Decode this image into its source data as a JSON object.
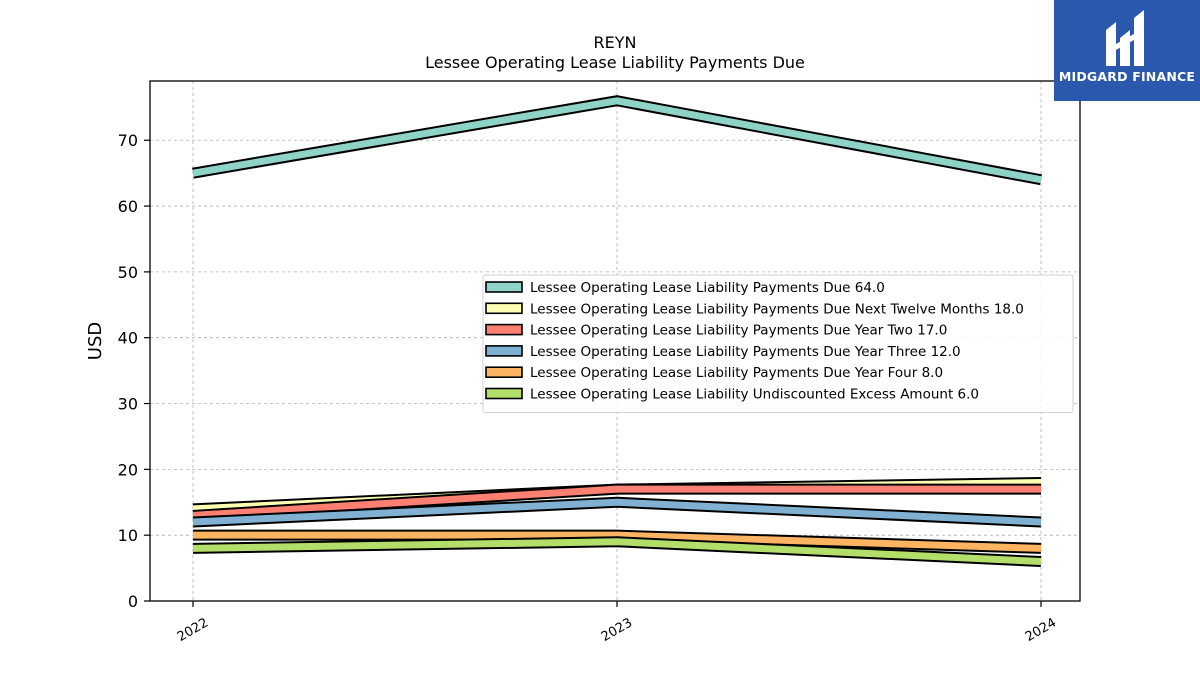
{
  "chart_data": {
    "type": "line",
    "title": "REYN",
    "subtitle": "Lessee Operating Lease Liability Payments Due",
    "ylabel": "USD",
    "xlabel": "",
    "x": [
      "2022",
      "2023",
      "2024"
    ],
    "ylim": [
      0,
      79
    ],
    "yticks": [
      0,
      10,
      20,
      30,
      40,
      50,
      60,
      70
    ],
    "grid": true,
    "legend_position": "center-right",
    "series": [
      {
        "name": "Lessee Operating Lease Liability Payments Due",
        "label": "Lessee Operating Lease Liability Payments Due  64.0",
        "values": [
          65.0,
          76.0,
          64.0
        ],
        "color": "#8dd3c7"
      },
      {
        "name": "Lessee Operating Lease Liability Payments Due Next Twelve Months",
        "label": "Lessee Operating Lease Liability Payments Due Next Twelve Months  18.0",
        "values": [
          14.0,
          17.0,
          18.0
        ],
        "color": "#ffffb3"
      },
      {
        "name": "Lessee Operating Lease Liability Payments Due Year Two",
        "label": "Lessee Operating Lease Liability Payments Due Year Two  17.0",
        "values": [
          13.0,
          17.0,
          17.0
        ],
        "color": "#fb8072"
      },
      {
        "name": "Lessee Operating Lease Liability Payments Due Year Three",
        "label": "Lessee Operating Lease Liability Payments Due Year Three  12.0",
        "values": [
          12.0,
          15.0,
          12.0
        ],
        "color": "#80b1d3"
      },
      {
        "name": "Lessee Operating Lease Liability Payments Due Year Four",
        "label": "Lessee Operating Lease Liability Payments Due Year Four  8.0",
        "values": [
          10.0,
          10.0,
          8.0
        ],
        "color": "#fdb462"
      },
      {
        "name": "Lessee Operating Lease Liability Undiscounted Excess Amount",
        "label": "Lessee Operating Lease Liability Undiscounted Excess Amount  6.0",
        "values": [
          8.0,
          9.0,
          6.0
        ],
        "color": "#b3de69"
      }
    ]
  },
  "logo": {
    "text": "MIDGARD FINANCE",
    "icon": "midgard-logo-icon",
    "background": "#2a58ad"
  }
}
